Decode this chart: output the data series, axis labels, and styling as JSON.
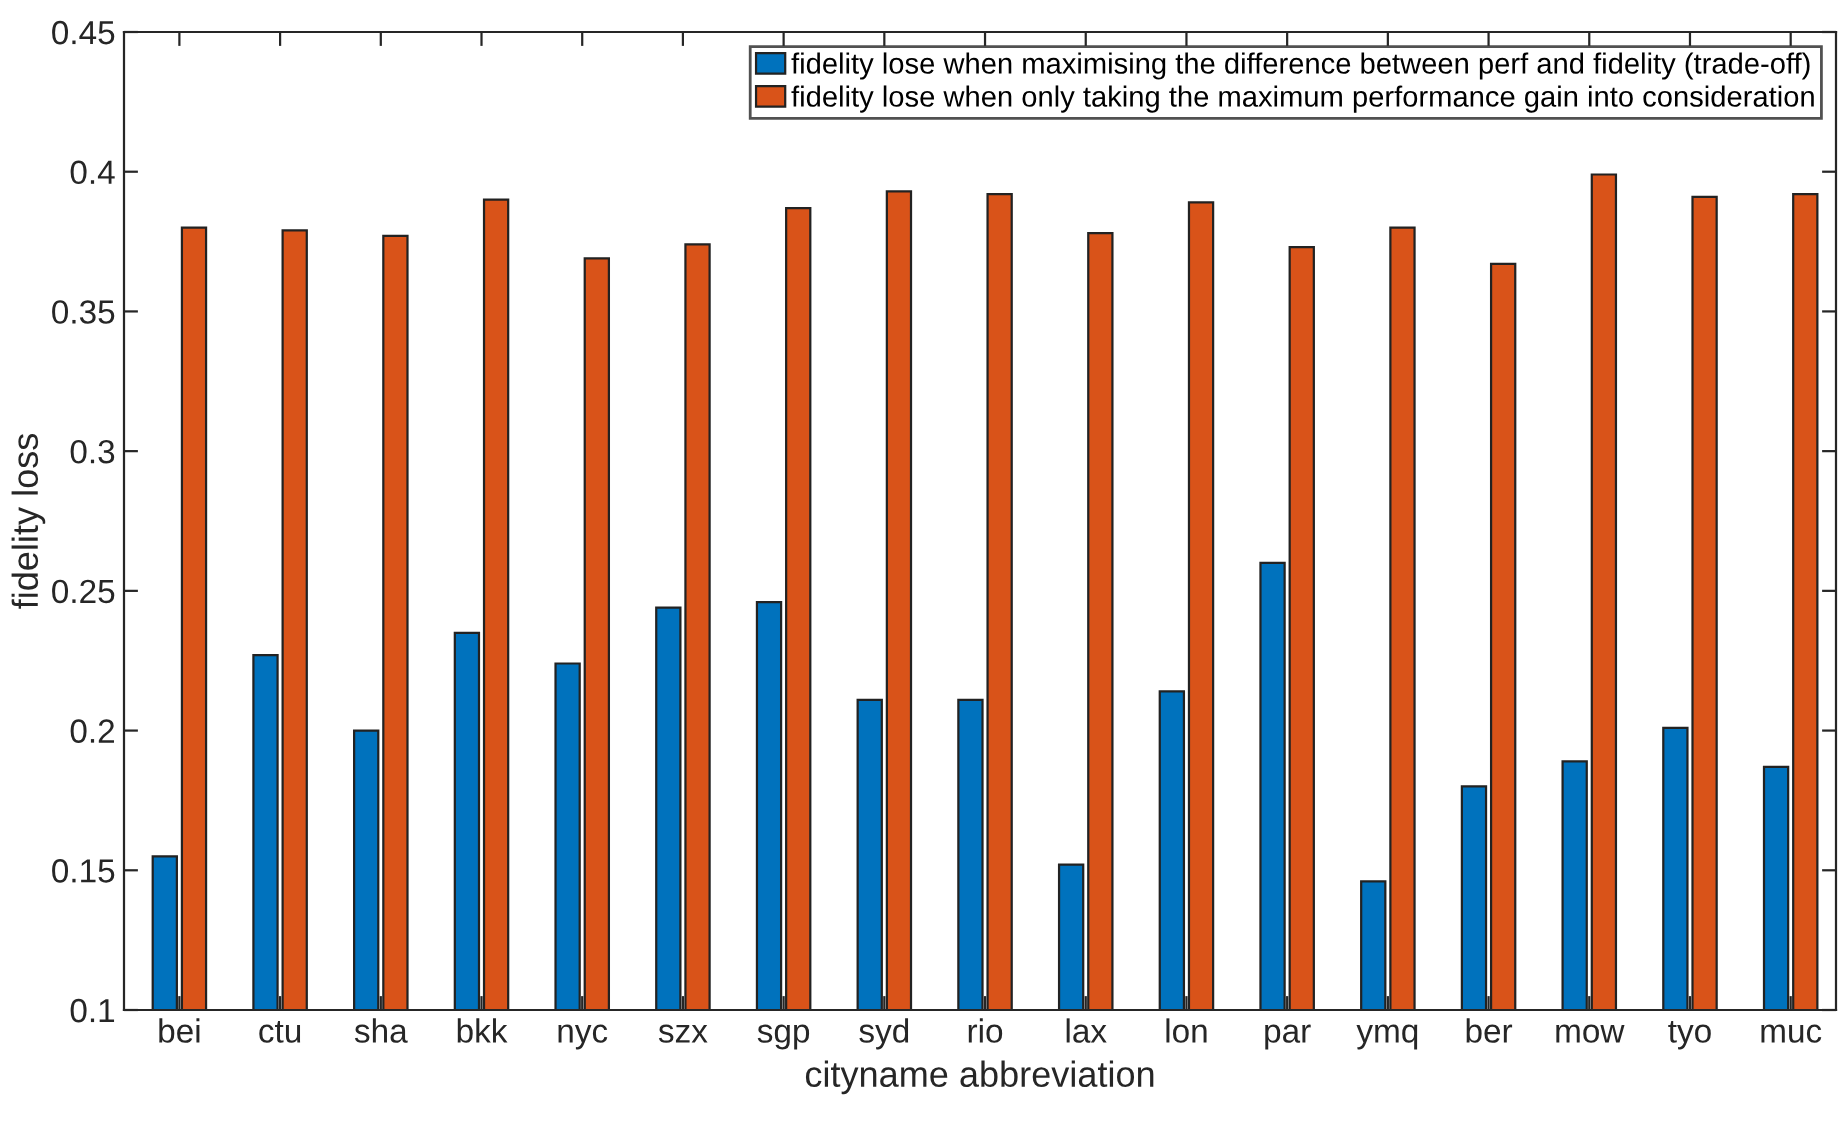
{
  "chart_data": {
    "type": "bar",
    "xlabel": "cityname abbreviation",
    "ylabel": "fidelity loss",
    "categories": [
      "bei",
      "ctu",
      "sha",
      "bkk",
      "nyc",
      "szx",
      "sgp",
      "syd",
      "rio",
      "lax",
      "lon",
      "par",
      "ymq",
      "ber",
      "mow",
      "tyo",
      "muc"
    ],
    "series": [
      {
        "name": "fidelity lose when maximising the difference between perf and fidelity (trade-off)",
        "color": "#0072bd",
        "values": [
          0.155,
          0.227,
          0.2,
          0.235,
          0.224,
          0.244,
          0.246,
          0.211,
          0.211,
          0.152,
          0.214,
          0.26,
          0.146,
          0.18,
          0.189,
          0.201,
          0.187
        ]
      },
      {
        "name": "fidelity lose when only taking the maximum performance gain into consideration",
        "color": "#d95319",
        "values": [
          0.38,
          0.379,
          0.377,
          0.39,
          0.369,
          0.374,
          0.387,
          0.393,
          0.392,
          0.378,
          0.389,
          0.373,
          0.38,
          0.367,
          0.399,
          0.391,
          0.392
        ]
      }
    ],
    "ylim": [
      0.1,
      0.45
    ],
    "yticks": [
      {
        "value": 0.1,
        "label": "0.1"
      },
      {
        "value": 0.15,
        "label": "0.15"
      },
      {
        "value": 0.2,
        "label": "0.2"
      },
      {
        "value": 0.25,
        "label": "0.25"
      },
      {
        "value": 0.3,
        "label": "0.3"
      },
      {
        "value": 0.35,
        "label": "0.35"
      },
      {
        "value": 0.4,
        "label": "0.4"
      },
      {
        "value": 0.45,
        "label": "0.45"
      }
    ],
    "legend": "top right",
    "grid": false
  }
}
